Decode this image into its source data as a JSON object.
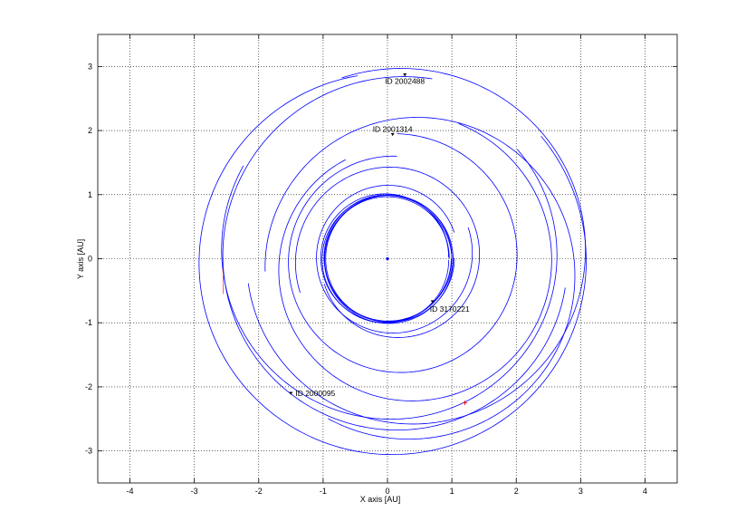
{
  "chart_data": {
    "type": "line",
    "title": "",
    "xlabel": "X axis [AU]",
    "ylabel": "Y axis [AU]",
    "xlim": [
      -4.5,
      4.5
    ],
    "ylim": [
      -3.5,
      3.5
    ],
    "xticks": [
      -4,
      -3,
      -2,
      -1,
      0,
      1,
      2,
      3,
      4
    ],
    "yticks": [
      -3,
      -2,
      -1,
      0,
      1,
      2,
      3
    ],
    "grid": true,
    "orbit_color": "#0000ff",
    "marker_color": "#000000",
    "end_marker_color": "#ff0000",
    "center": {
      "x": 0,
      "y": 0
    },
    "earth_orbit": {
      "radius": 1.0
    },
    "objects": [
      {
        "label": "ID 2002488",
        "x": 0.27,
        "y": 2.87
      },
      {
        "label": "ID 2001314",
        "x": 0.08,
        "y": 1.94
      },
      {
        "label": "ID 3170221",
        "x": 0.7,
        "y": -0.67
      },
      {
        "label": "ID 2000095",
        "x": -1.5,
        "y": -2.1
      }
    ],
    "end_markers": [
      {
        "x": 1.2,
        "y": -2.25
      }
    ]
  }
}
